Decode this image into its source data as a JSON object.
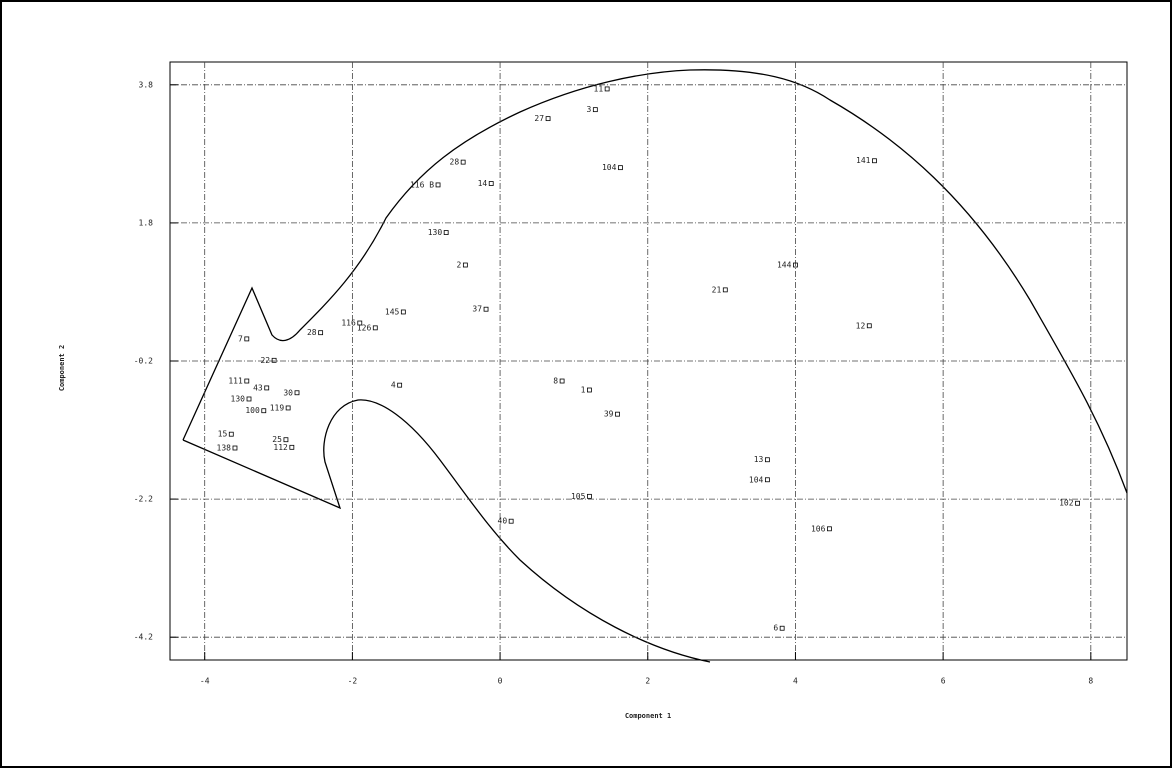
{
  "chart_data": {
    "type": "scatter",
    "xlabel": "Component 1",
    "ylabel": "Component 2",
    "xlim": [
      -4.47,
      8.49
    ],
    "ylim": [
      -4.53,
      4.13
    ],
    "xticks": [
      -4,
      -2,
      0,
      2,
      4,
      6,
      8
    ],
    "yticks": [
      3.8,
      1.8,
      -0.2,
      -2.2,
      -4.2
    ],
    "grid": true,
    "color": "#000000",
    "point_labels": [
      "11",
      "3",
      "27",
      "28",
      "104",
      "141",
      "116 B",
      "14",
      "130",
      "2",
      "144",
      "21",
      "145",
      "37",
      "116",
      "126",
      "28",
      "12",
      "7",
      "22",
      "4",
      "8",
      "1",
      "39",
      "111",
      "43",
      "30",
      "130",
      "100",
      "119",
      "15",
      "25",
      "138",
      "112",
      "13",
      "104",
      "105",
      "102",
      "40",
      "106",
      "6"
    ],
    "x": [
      1.45,
      1.29,
      0.65,
      -0.5,
      1.63,
      5.07,
      -0.84,
      -0.12,
      -0.73,
      -0.47,
      4.0,
      3.05,
      -1.31,
      -0.19,
      -1.9,
      -1.69,
      -2.43,
      5.0,
      -3.43,
      -3.06,
      -1.36,
      0.84,
      1.21,
      1.59,
      -3.43,
      -3.16,
      -2.75,
      -3.4,
      -3.2,
      -2.87,
      -3.64,
      -2.9,
      -3.59,
      -2.82,
      3.62,
      3.62,
      1.21,
      7.82,
      0.15,
      4.46,
      3.82
    ],
    "values": [
      3.74,
      3.44,
      3.31,
      2.68,
      2.6,
      2.7,
      2.35,
      2.37,
      1.66,
      1.19,
      1.19,
      0.83,
      0.51,
      0.55,
      0.35,
      0.28,
      0.21,
      0.31,
      0.12,
      -0.19,
      -0.55,
      -0.49,
      -0.62,
      -0.97,
      -0.49,
      -0.59,
      -0.66,
      -0.75,
      -0.92,
      -0.88,
      -1.26,
      -1.34,
      -1.46,
      -1.45,
      -1.63,
      -1.92,
      -2.16,
      -2.26,
      -2.52,
      -2.63,
      -4.07
    ]
  }
}
